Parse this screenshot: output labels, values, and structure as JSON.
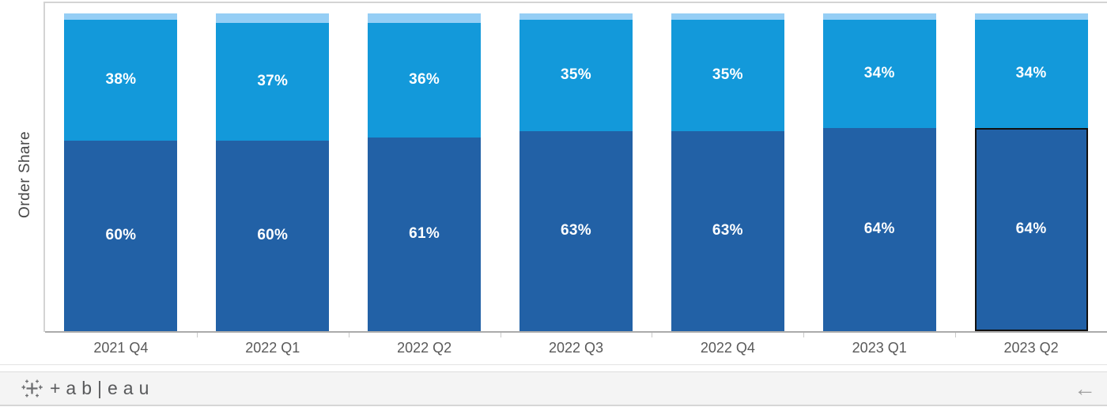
{
  "chart_data": {
    "type": "bar",
    "stacked": true,
    "title": "",
    "ylabel": "Order Share",
    "xlabel": "",
    "ylim": [
      0,
      100
    ],
    "grid": false,
    "legend": "none",
    "categories": [
      "2021 Q4",
      "2022 Q1",
      "2022 Q2",
      "2022 Q3",
      "2022 Q4",
      "2023 Q1",
      "2023 Q2"
    ],
    "series": [
      {
        "name": "bottom-segment",
        "color": "#2261a6",
        "values": [
          60,
          60,
          61,
          63,
          63,
          64,
          64
        ],
        "labels": [
          "60%",
          "60%",
          "61%",
          "63%",
          "63%",
          "64%",
          "64%"
        ]
      },
      {
        "name": "middle-segment",
        "color": "#1399da",
        "values": [
          38,
          37,
          36,
          35,
          35,
          34,
          34
        ],
        "labels": [
          "38%",
          "37%",
          "36%",
          "35%",
          "35%",
          "34%",
          "34%"
        ]
      },
      {
        "name": "top-segment",
        "color": "#95cef5",
        "values": [
          2,
          3,
          3,
          2,
          2,
          2,
          2
        ],
        "labels": [
          "",
          "",
          "",
          "",
          "",
          "",
          ""
        ]
      }
    ],
    "highlight": {
      "category": "2023 Q2",
      "series": "bottom-segment",
      "outline_color": "#111111"
    },
    "axis_color": "#ababab",
    "label_color": "#595959"
  },
  "footer": {
    "brand": "+ab|eau",
    "undo_icon": "←"
  }
}
